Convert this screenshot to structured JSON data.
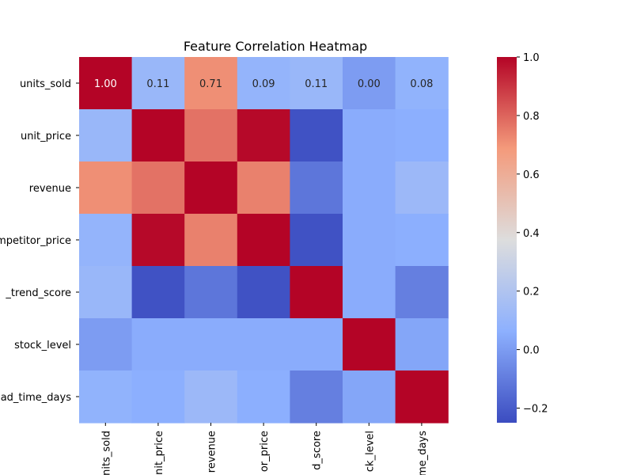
{
  "chart_data": {
    "type": "heatmap",
    "title": "Feature Correlation Heatmap",
    "row_labels": [
      "units_sold",
      "unit_price",
      "revenue",
      "mpetitor_price",
      "_trend_score",
      "stock_level",
      "ad_time_days"
    ],
    "col_labels": [
      "nits_sold",
      "nit_price",
      "revenue",
      "or_price",
      "d_score",
      "ck_level",
      "me_days"
    ],
    "values": [
      [
        1.0,
        0.11,
        0.71,
        0.09,
        0.11,
        0.0,
        0.08
      ],
      [
        0.11,
        1.0,
        0.77,
        0.99,
        -0.23,
        0.05,
        0.06
      ],
      [
        0.71,
        0.77,
        1.0,
        0.74,
        -0.12,
        0.05,
        0.12
      ],
      [
        0.09,
        0.99,
        0.74,
        1.0,
        -0.23,
        0.05,
        0.06
      ],
      [
        0.11,
        -0.23,
        -0.12,
        -0.23,
        1.0,
        0.05,
        -0.09
      ],
      [
        0.0,
        0.05,
        0.05,
        0.05,
        0.05,
        1.0,
        0.03
      ],
      [
        0.08,
        0.06,
        0.12,
        0.06,
        -0.09,
        0.03,
        1.0
      ]
    ],
    "annotations": [
      "1.00",
      "0.11",
      "0.71",
      "0.09",
      "0.11",
      "0.00",
      "0.08"
    ],
    "colormap": "coolwarm",
    "vmin": -0.25,
    "vmax": 1.0,
    "colorbar_ticks": [
      "1.0",
      "0.8",
      "0.6",
      "0.4",
      "0.2",
      "0.0",
      "−0.2"
    ],
    "colorbar_tick_values": [
      1.0,
      0.8,
      0.6,
      0.4,
      0.2,
      0.0,
      -0.2
    ]
  }
}
